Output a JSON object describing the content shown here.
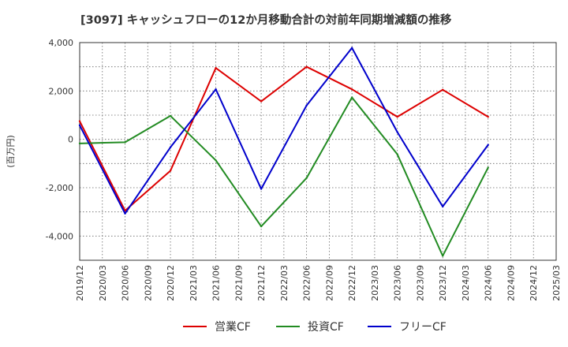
{
  "chart_data": {
    "type": "line",
    "title": "[3097]  キャッシュフローの12か月移動合計の対前年同期増減額の推移",
    "ylabel": "(百万円)",
    "xlabel": "",
    "ylim": [
      -5000,
      4000
    ],
    "y_ticks": [
      4000,
      2000,
      0,
      -2000,
      -4000
    ],
    "y_tick_labels": [
      "4,000",
      "2,000",
      "0",
      "-2,000",
      "-4,000"
    ],
    "categories": [
      "2019/12",
      "2020/03",
      "2020/06",
      "2020/09",
      "2020/12",
      "2021/03",
      "2021/06",
      "2021/09",
      "2021/12",
      "2022/03",
      "2022/06",
      "2022/09",
      "2022/12",
      "2023/03",
      "2023/06",
      "2023/09",
      "2023/12",
      "2024/03",
      "2024/06",
      "2024/09",
      "2024/12",
      "2025/03"
    ],
    "grid": true,
    "legend_position": "bottom",
    "series": [
      {
        "name": "営業CF",
        "color": "#dd0000",
        "x": [
          "2019/12",
          "2020/06",
          "2020/12",
          "2021/06",
          "2021/12",
          "2022/06",
          "2022/12",
          "2023/06",
          "2023/12",
          "2024/06"
        ],
        "values": [
          750,
          -2950,
          -1300,
          2950,
          1570,
          3000,
          2070,
          930,
          2050,
          930
        ]
      },
      {
        "name": "投資CF",
        "color": "#228b22",
        "x": [
          "2019/12",
          "2020/06",
          "2020/12",
          "2021/06",
          "2021/12",
          "2022/06",
          "2022/12",
          "2023/06",
          "2023/12",
          "2024/06"
        ],
        "values": [
          -170,
          -120,
          970,
          -870,
          -3600,
          -1600,
          1730,
          -620,
          -4820,
          -1170
        ]
      },
      {
        "name": "フリーCF",
        "color": "#0000cc",
        "x": [
          "2019/12",
          "2020/06",
          "2020/12",
          "2021/06",
          "2021/12",
          "2022/06",
          "2022/12",
          "2023/06",
          "2023/12",
          "2024/06"
        ],
        "values": [
          580,
          -3070,
          -330,
          2070,
          -2050,
          1400,
          3780,
          300,
          -2780,
          -230
        ]
      }
    ]
  }
}
